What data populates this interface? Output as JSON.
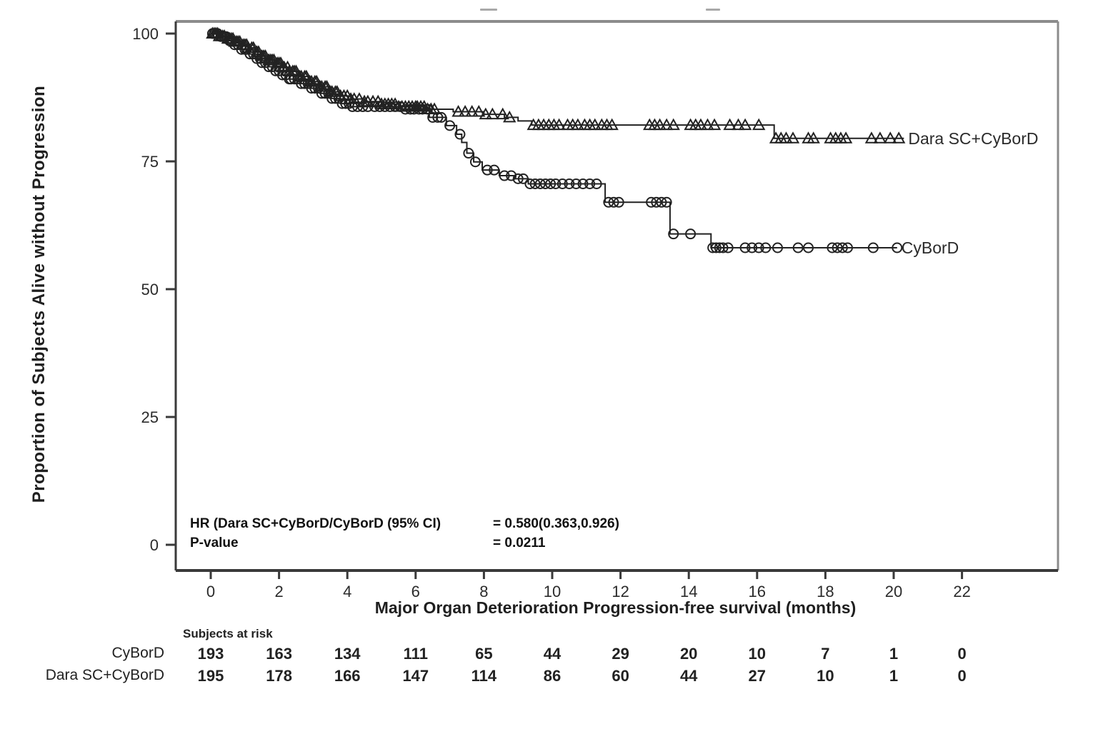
{
  "figure": {
    "y_axis_title": "Proportion of Subjects Alive without Progression",
    "x_axis_title": "Major Organ Deterioration Progression-free survival (months)",
    "annotation": {
      "hr_label": "HR (Dara SC+CyBorD/CyBorD (95% CI)",
      "hr_value": "= 0.580(0.363,0.926)",
      "p_label": "P-value",
      "p_value": "= 0.0211"
    },
    "risk_table": {
      "header": "Subjects at risk",
      "months": [
        0,
        2,
        4,
        6,
        8,
        10,
        12,
        14,
        16,
        18,
        20,
        22
      ],
      "rows": [
        {
          "label": "CyBorD",
          "counts": [
            193,
            163,
            134,
            111,
            65,
            44,
            29,
            20,
            10,
            7,
            1,
            0
          ]
        },
        {
          "label": "Dara SC+CyBorD",
          "counts": [
            195,
            178,
            166,
            147,
            114,
            86,
            60,
            44,
            27,
            10,
            1,
            0
          ]
        }
      ]
    }
  },
  "chart_data": {
    "type": "line",
    "subtype": "kaplan-meier-step",
    "title": "",
    "xlabel": "Major Organ Deterioration Progression-free survival (months)",
    "ylabel": "Proportion of Subjects Alive without Progression",
    "xticks": [
      0,
      2,
      4,
      6,
      8,
      10,
      12,
      14,
      16,
      18,
      20,
      22
    ],
    "yticks": [
      0,
      25,
      50,
      75,
      100
    ],
    "xlim": [
      -1.2,
      24.8
    ],
    "ylim": [
      -1,
      102
    ],
    "grid": false,
    "legend_position": "curve-end-labels",
    "line_color": "#222222",
    "hazard_ratio": "0.580 (0.363, 0.926)",
    "p_value": "0.0211",
    "series": [
      {
        "name": "Dara SC+CyBorD",
        "marker": "triangle",
        "end": 20.3,
        "steps": [
          [
            0,
            100
          ],
          [
            0.25,
            99.5
          ],
          [
            0.5,
            99
          ],
          [
            0.7,
            98.4
          ],
          [
            0.9,
            97.8
          ],
          [
            1.1,
            97.2
          ],
          [
            1.3,
            96.4
          ],
          [
            1.5,
            95.6
          ],
          [
            1.7,
            94.8
          ],
          [
            1.9,
            94.2
          ],
          [
            2.1,
            93.4
          ],
          [
            2.3,
            92.6
          ],
          [
            2.6,
            91.6
          ],
          [
            2.9,
            90.6
          ],
          [
            3.2,
            89.6
          ],
          [
            3.5,
            88.6
          ],
          [
            3.8,
            87.8
          ],
          [
            4.1,
            87.2
          ],
          [
            4.5,
            86.7
          ],
          [
            5.0,
            86.2
          ],
          [
            5.5,
            85.7
          ],
          [
            6.3,
            85.2
          ],
          [
            7.1,
            84.7
          ],
          [
            8.0,
            84.2
          ],
          [
            8.6,
            83.6
          ],
          [
            9.0,
            82.9
          ],
          [
            9.4,
            82.1
          ],
          [
            16.5,
            79.5
          ]
        ],
        "censor_marks": [
          0.05,
          0.1,
          0.15,
          0.2,
          0.25,
          0.3,
          0.35,
          0.4,
          0.5,
          0.55,
          0.6,
          0.65,
          0.7,
          0.75,
          0.8,
          0.85,
          0.95,
          1.0,
          1.05,
          1.1,
          1.2,
          1.25,
          1.35,
          1.4,
          1.5,
          1.55,
          1.6,
          1.7,
          1.75,
          1.8,
          1.85,
          1.95,
          2.0,
          2.05,
          2.1,
          2.15,
          2.25,
          2.3,
          2.4,
          2.45,
          2.5,
          2.6,
          2.65,
          2.75,
          2.8,
          2.9,
          2.95,
          3.05,
          3.1,
          3.2,
          3.25,
          3.35,
          3.4,
          3.5,
          3.55,
          3.65,
          3.7,
          3.8,
          3.9,
          4.0,
          4.1,
          4.2,
          4.35,
          4.5,
          4.6,
          4.75,
          4.9,
          5.0,
          5.1,
          5.2,
          5.3,
          5.4,
          5.5,
          5.6,
          5.7,
          5.8,
          5.9,
          6.0,
          6.05,
          6.15,
          6.25,
          6.35,
          6.45,
          6.55,
          7.25,
          7.45,
          7.65,
          7.85,
          8.05,
          8.25,
          8.55,
          8.75,
          9.45,
          9.6,
          9.75,
          9.9,
          10.05,
          10.2,
          10.45,
          10.6,
          10.75,
          10.95,
          11.1,
          11.25,
          11.45,
          11.6,
          11.75,
          12.85,
          13.0,
          13.15,
          13.35,
          13.55,
          14.05,
          14.2,
          14.35,
          14.55,
          14.75,
          15.2,
          15.45,
          15.65,
          16.05,
          16.55,
          16.7,
          16.85,
          17.05,
          17.5,
          17.65,
          18.15,
          18.3,
          18.45,
          18.6,
          19.35,
          19.6,
          19.9,
          20.15
        ]
      },
      {
        "name": "CyBorD",
        "marker": "circle",
        "end": 20.1,
        "steps": [
          [
            0,
            100
          ],
          [
            0.25,
            99.4
          ],
          [
            0.5,
            98.6
          ],
          [
            0.7,
            97.8
          ],
          [
            0.9,
            96.9
          ],
          [
            1.1,
            96.0
          ],
          [
            1.3,
            95.1
          ],
          [
            1.5,
            94.3
          ],
          [
            1.7,
            93.5
          ],
          [
            1.9,
            92.7
          ],
          [
            2.1,
            91.9
          ],
          [
            2.3,
            91.1
          ],
          [
            2.6,
            90.2
          ],
          [
            2.9,
            89.3
          ],
          [
            3.2,
            88.3
          ],
          [
            3.5,
            87.3
          ],
          [
            3.8,
            86.3
          ],
          [
            4.1,
            85.7
          ],
          [
            5.6,
            85.2
          ],
          [
            6.4,
            83.6
          ],
          [
            6.9,
            82.0
          ],
          [
            7.2,
            80.3
          ],
          [
            7.35,
            78.7
          ],
          [
            7.5,
            76.6
          ],
          [
            7.7,
            74.9
          ],
          [
            7.95,
            73.3
          ],
          [
            8.45,
            72.2
          ],
          [
            8.9,
            71.6
          ],
          [
            9.3,
            70.6
          ],
          [
            11.55,
            67.0
          ],
          [
            13.45,
            60.8
          ],
          [
            14.65,
            58.1
          ]
        ],
        "censor_marks": [
          0.05,
          0.1,
          0.2,
          0.3,
          0.4,
          0.45,
          0.55,
          0.6,
          0.7,
          0.8,
          0.9,
          1.0,
          1.05,
          1.15,
          1.25,
          1.35,
          1.45,
          1.5,
          1.6,
          1.7,
          1.8,
          1.9,
          2.0,
          2.1,
          2.2,
          2.3,
          2.35,
          2.45,
          2.55,
          2.65,
          2.75,
          2.85,
          2.95,
          3.05,
          3.15,
          3.25,
          3.35,
          3.45,
          3.55,
          3.65,
          3.75,
          3.85,
          3.95,
          4.05,
          4.15,
          4.3,
          4.45,
          4.6,
          4.8,
          4.95,
          5.1,
          5.25,
          5.4,
          5.55,
          5.7,
          5.85,
          5.95,
          6.1,
          6.2,
          6.35,
          6.5,
          6.65,
          6.75,
          7.0,
          7.3,
          7.55,
          7.75,
          8.1,
          8.3,
          8.6,
          8.8,
          9.0,
          9.15,
          9.35,
          9.5,
          9.65,
          9.8,
          9.95,
          10.1,
          10.3,
          10.5,
          10.7,
          10.9,
          11.1,
          11.3,
          11.65,
          11.8,
          11.95,
          12.9,
          13.05,
          13.2,
          13.35,
          13.55,
          14.05,
          14.7,
          14.8,
          14.9,
          15.0,
          15.15,
          15.65,
          15.85,
          16.05,
          16.25,
          16.6,
          17.2,
          17.5,
          18.2,
          18.35,
          18.5,
          18.65,
          19.4,
          20.1
        ]
      }
    ],
    "risk_table": {
      "header": "Subjects at risk",
      "months": [
        0,
        2,
        4,
        6,
        8,
        10,
        12,
        14,
        16,
        18,
        20,
        22
      ],
      "rows": [
        {
          "label": "CyBorD",
          "counts": [
            193,
            163,
            134,
            111,
            65,
            44,
            29,
            20,
            10,
            7,
            1,
            0
          ]
        },
        {
          "label": "Dara SC+CyBorD",
          "counts": [
            195,
            178,
            166,
            147,
            114,
            86,
            60,
            44,
            27,
            10,
            1,
            0
          ]
        }
      ]
    }
  }
}
